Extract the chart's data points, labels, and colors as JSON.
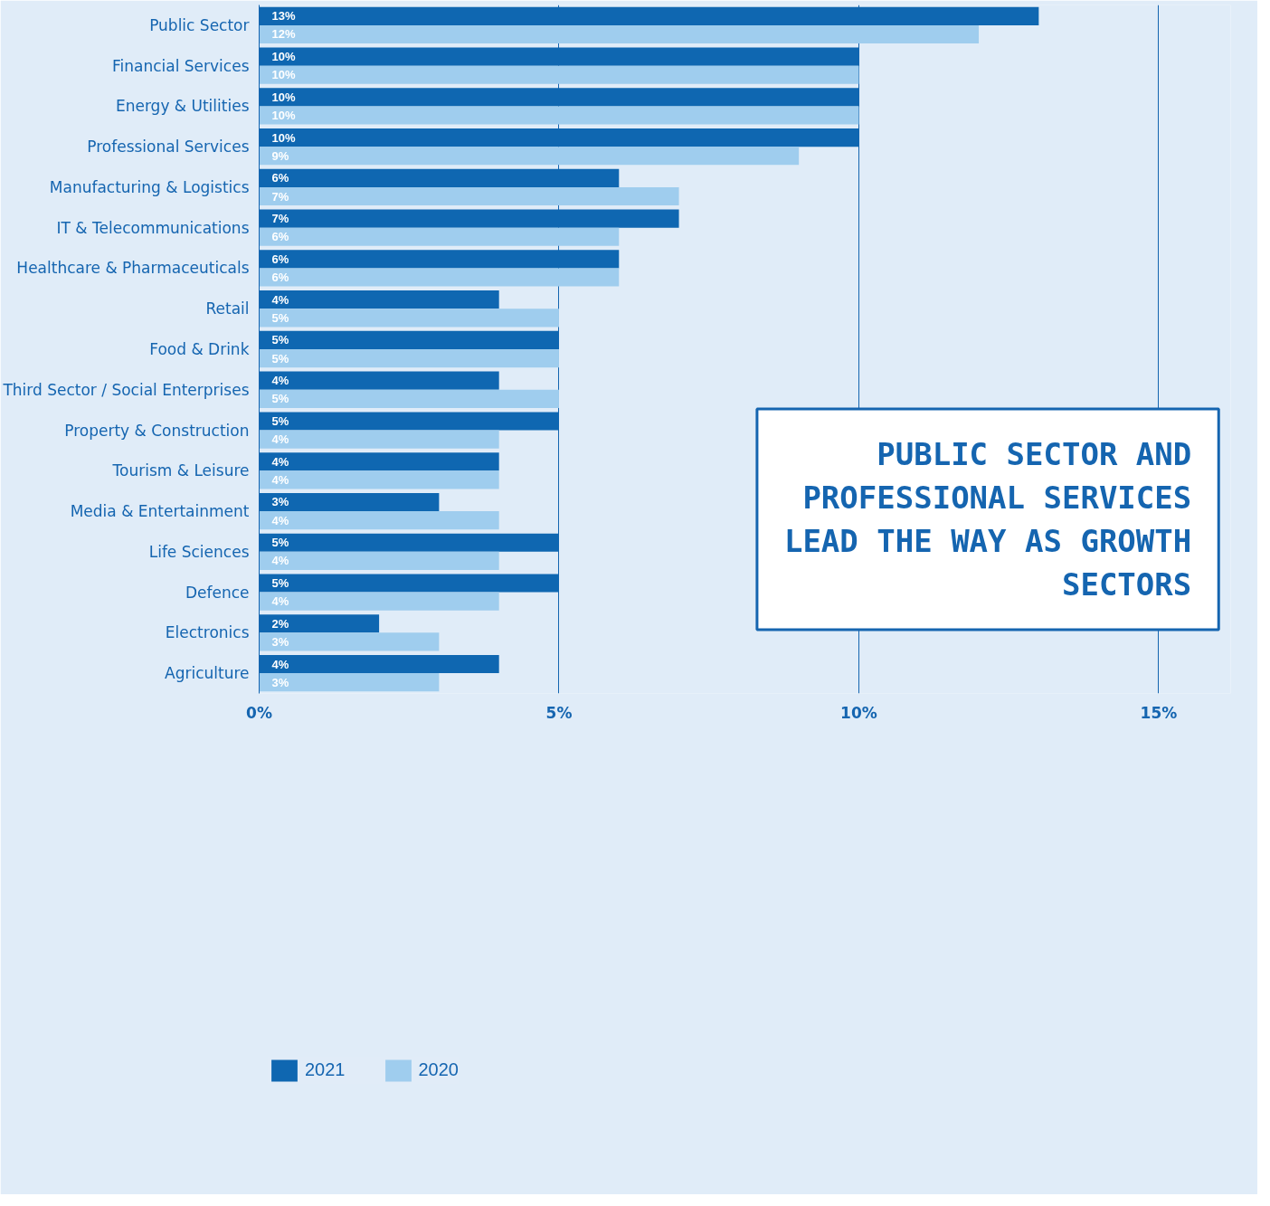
{
  "chart_data": {
    "type": "bar",
    "orientation": "horizontal",
    "categories": [
      "Public Sector",
      "Financial Services",
      "Energy & Utilities",
      "Professional Services",
      "Manufacturing & Logistics",
      "IT & Telecommunications",
      "Healthcare & Pharmaceuticals",
      "Retail",
      "Food & Drink",
      "Third Sector / Social Enterprises",
      "Property & Construction",
      "Tourism & Leisure",
      "Media & Entertainment",
      "Life Sciences",
      "Defence",
      "Electronics",
      "Agriculture"
    ],
    "series": [
      {
        "name": "2021",
        "color": "#0f67b1",
        "values": [
          13,
          10,
          10,
          10,
          6,
          7,
          6,
          4,
          5,
          4,
          5,
          4,
          3,
          5,
          5,
          2,
          4
        ],
        "value_labels": [
          "13%",
          "10%",
          "10%",
          "10%",
          "6%",
          "7%",
          "6%",
          "4%",
          "5%",
          "4%",
          "5%",
          "4%",
          "3%",
          "5%",
          "5%",
          "2%",
          "4%"
        ]
      },
      {
        "name": "2020",
        "color": "#9fcdee",
        "values": [
          12,
          10,
          10,
          9,
          7,
          6,
          6,
          5,
          5,
          5,
          4,
          4,
          4,
          4,
          4,
          3,
          3
        ],
        "value_labels": [
          "12%",
          "10%",
          "10%",
          "9%",
          "7%",
          "6%",
          "6%",
          "5%",
          "5%",
          "5%",
          "4%",
          "4%",
          "4%",
          "4%",
          "4%",
          "3%",
          "3%"
        ]
      }
    ],
    "xlim": [
      0,
      16.2
    ],
    "xticks": [
      {
        "value": 0,
        "label": "0%"
      },
      {
        "value": 5,
        "label": "5%"
      },
      {
        "value": 10,
        "label": "10%"
      },
      {
        "value": 15,
        "label": "15%"
      }
    ],
    "grid": "x",
    "legend": "bottom left",
    "annotations": [
      "PUBLIC SECTOR AND PROFESSIONAL SERVICES LEAD THE WAY AS GROWTH SECTORS"
    ]
  }
}
